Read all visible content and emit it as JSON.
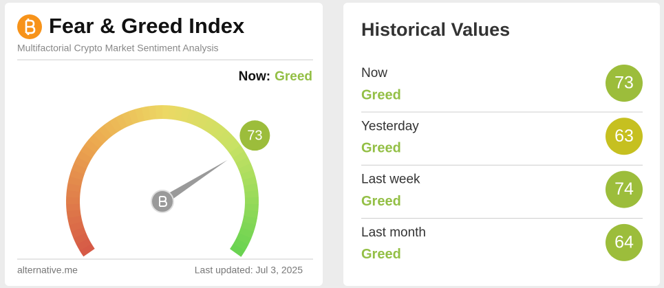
{
  "header": {
    "title": "Fear & Greed Index",
    "subtitle": "Multifactorial Crypto Market Sentiment Analysis"
  },
  "now": {
    "label": "Now:",
    "classification": "Greed",
    "color": "#93bf45"
  },
  "gauge": {
    "value": 73,
    "range": [
      0,
      100
    ],
    "color": "#9cbd3b"
  },
  "footer": {
    "source": "alternative.me",
    "updated": "Last updated: Jul 3, 2025"
  },
  "historical": {
    "title": "Historical Values",
    "rows": [
      {
        "period": "Now",
        "classification": "Greed",
        "value": 73,
        "color": "#9cbd3b"
      },
      {
        "period": "Yesterday",
        "classification": "Greed",
        "value": 63,
        "color": "#c6c020"
      },
      {
        "period": "Last week",
        "classification": "Greed",
        "value": 74,
        "color": "#9cbd3b"
      },
      {
        "period": "Last month",
        "classification": "Greed",
        "value": 64,
        "color": "#9cbd3b"
      }
    ]
  }
}
